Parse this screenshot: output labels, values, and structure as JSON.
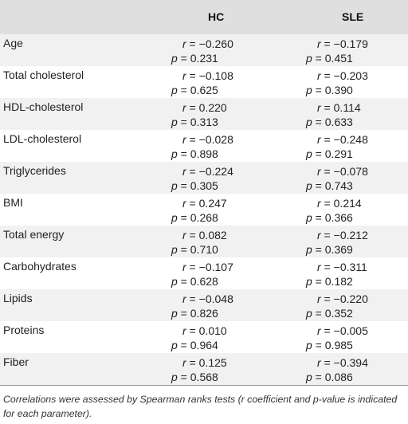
{
  "table": {
    "headers": {
      "parameter": "",
      "hc": "HC",
      "sle": "SLE"
    },
    "rows": [
      {
        "parameter": "Age",
        "hc_r": "−0.260",
        "hc_p": "0.231",
        "sle_r": "−0.179",
        "sle_p": "0.451"
      },
      {
        "parameter": "Total cholesterol",
        "hc_r": "−0.108",
        "hc_p": "0.625",
        "sle_r": "−0.203",
        "sle_p": "0.390"
      },
      {
        "parameter": "HDL-cholesterol",
        "hc_r": "0.220",
        "hc_p": "0.313",
        "sle_r": "0.114",
        "sle_p": "0.633"
      },
      {
        "parameter": "LDL-cholesterol",
        "hc_r": "−0.028",
        "hc_p": "0.898",
        "sle_r": "−0.248",
        "sle_p": "0.291"
      },
      {
        "parameter": "Triglycerides",
        "hc_r": "−0.224",
        "hc_p": "0.305",
        "sle_r": "−0.078",
        "sle_p": "0.743"
      },
      {
        "parameter": "BMI",
        "hc_r": "0.247",
        "hc_p": "0.268",
        "sle_r": "0.214",
        "sle_p": "0.366"
      },
      {
        "parameter": "Total energy",
        "hc_r": "0.082",
        "hc_p": "0.710",
        "sle_r": "−0.212",
        "sle_p": "0.369"
      },
      {
        "parameter": "Carbohydrates",
        "hc_r": "−0.107",
        "hc_p": "0.628",
        "sle_r": "−0.311",
        "sle_p": "0.182"
      },
      {
        "parameter": "Lipids",
        "hc_r": "−0.048",
        "hc_p": "0.826",
        "sle_r": "−0.220",
        "sle_p": "0.352"
      },
      {
        "parameter": "Proteins",
        "hc_r": "0.010",
        "hc_p": "0.964",
        "sle_r": "−0.005",
        "sle_p": "0.985"
      },
      {
        "parameter": "Fiber",
        "hc_r": "0.125",
        "hc_p": "0.568",
        "sle_r": "−0.394",
        "sle_p": "0.086"
      }
    ]
  },
  "footnote": "Correlations were assessed by Spearman ranks tests  (r coefficient and p-value is indicated for each parameter).",
  "colors": {
    "header_bg": "#dfdfdf",
    "shaded_row_bg": "#f1f1f1"
  }
}
